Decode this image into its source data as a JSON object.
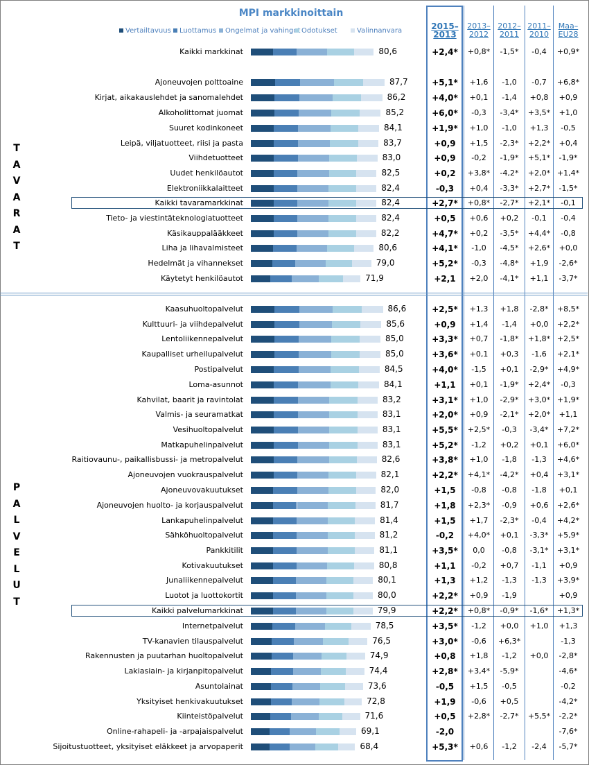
{
  "chart_data": {
    "type": "table",
    "title": "MPI markkinoittain",
    "legend": [
      "Vertailtavuus",
      "Luottamus",
      "Ongelmat ja vahingot",
      "Odotukset",
      "Valinnanvara"
    ],
    "legend_colors": [
      "#1f4e79",
      "#4a7fb5",
      "#8ab1d6",
      "#a9d1e3",
      "#d6e3f0"
    ],
    "columns": [
      "2015–2013",
      "2013–2012",
      "2012–2011",
      "2011–2010",
      "Maa–EU28"
    ],
    "sections": [
      "T A V A R A T",
      "P A L V E L U T"
    ],
    "rows": [
      {
        "label": "Kaikki markkinat",
        "value": "80,6",
        "d": [
          "+2,4*",
          "+0,8*",
          "-1,5*",
          "-0,4",
          "+0,9*"
        ]
      },
      {
        "label": "Ajoneuvojen polttoaine",
        "value": "87,7",
        "d": [
          "+5,1*",
          "+1,6",
          "-1,0",
          "-0,7",
          "+6,8*"
        ]
      },
      {
        "label": "Kirjat, aikakauslehdet ja sanomalehdet",
        "value": "86,2",
        "d": [
          "+4,0*",
          "+0,1",
          "-1,4",
          "+0,8",
          "+0,9"
        ]
      },
      {
        "label": "Alkoholittomat juomat",
        "value": "85,2",
        "d": [
          "+6,0*",
          "-0,3",
          "-3,4*",
          "+3,5*",
          "+1,0"
        ]
      },
      {
        "label": "Suuret kodinkoneet",
        "value": "84,1",
        "d": [
          "+1,9*",
          "+1,0",
          "-1,0",
          "+1,3",
          "-0,5"
        ]
      },
      {
        "label": "Leipä, viljatuotteet, riisi ja pasta",
        "value": "83,7",
        "d": [
          "+0,9",
          "+1,5",
          "-2,3*",
          "+2,2*",
          "+0,4"
        ]
      },
      {
        "label": "Viihdetuotteet",
        "value": "83,0",
        "d": [
          "+0,9",
          "-0,2",
          "-1,9*",
          "+5,1*",
          "-1,9*"
        ]
      },
      {
        "label": "Uudet henkilöautot",
        "value": "82,5",
        "d": [
          "+0,2",
          "+3,8*",
          "-4,2*",
          "+2,0*",
          "+1,4*"
        ]
      },
      {
        "label": "Elektroniikkalaitteet",
        "value": "82,4",
        "d": [
          "-0,3",
          "+0,4",
          "-3,3*",
          "+2,7*",
          "-1,5*"
        ]
      },
      {
        "label": "Kaikki tavaramarkkinat",
        "value": "82,4",
        "d": [
          "+2,7*",
          "+0,8*",
          "-2,7*",
          "+2,1*",
          "-0,1"
        ]
      },
      {
        "label": "Tieto- ja viestintäteknologiatuotteet",
        "value": "82,4",
        "d": [
          "+0,5",
          "+0,6",
          "+0,2",
          "-0,1",
          "-0,4"
        ]
      },
      {
        "label": "Käsikauppalääkkeet",
        "value": "82,2",
        "d": [
          "+4,7*",
          "+0,2",
          "-3,5*",
          "+4,4*",
          "-0,8"
        ]
      },
      {
        "label": "Liha ja lihavalmisteet",
        "value": "80,6",
        "d": [
          "+4,1*",
          "-1,0",
          "-4,5*",
          "+2,6*",
          "+0,0"
        ]
      },
      {
        "label": "Hedelmät ja vihannekset",
        "value": "79,0",
        "d": [
          "+5,2*",
          "-0,3",
          "-4,8*",
          "+1,9",
          "-2,6*"
        ]
      },
      {
        "label": "Käytetyt henkilöautot",
        "value": "71,9",
        "d": [
          "+2,1",
          "+2,0",
          "-4,1*",
          "+1,1",
          "-3,7*"
        ]
      },
      {
        "label": "Kaasuhuoltopalvelut",
        "value": "86,6",
        "d": [
          "+2,5*",
          "+1,3",
          "+1,8",
          "-2,8*",
          "+8,5*"
        ]
      },
      {
        "label": "Kulttuuri- ja viihdepalvelut",
        "value": "85,6",
        "d": [
          "+0,9",
          "+1,4",
          "-1,4",
          "+0,0",
          "+2,2*"
        ]
      },
      {
        "label": "Lentoliikennepalvelut",
        "value": "85,0",
        "d": [
          "+3,3*",
          "+0,7",
          "-1,8*",
          "+1,8*",
          "+2,5*"
        ]
      },
      {
        "label": "Kaupalliset urheilupalvelut",
        "value": "85,0",
        "d": [
          "+3,6*",
          "+0,1",
          "+0,3",
          "-1,6",
          "+2,1*"
        ]
      },
      {
        "label": "Postipalvelut",
        "value": "84,5",
        "d": [
          "+4,0*",
          "-1,5",
          "+0,1",
          "-2,9*",
          "+4,9*"
        ]
      },
      {
        "label": "Loma-asunnot",
        "value": "84,1",
        "d": [
          "+1,1",
          "+0,1",
          "-1,9*",
          "+2,4*",
          "-0,3"
        ]
      },
      {
        "label": "Kahvilat, baarit ja ravintolat",
        "value": "83,2",
        "d": [
          "+3,1*",
          "+1,0",
          "-2,9*",
          "+3,0*",
          "+1,9*"
        ]
      },
      {
        "label": "Valmis- ja seuramatkat",
        "value": "83,1",
        "d": [
          "+2,0*",
          "+0,9",
          "-2,1*",
          "+2,0*",
          "+1,1"
        ]
      },
      {
        "label": "Vesihuoltopalvelut",
        "value": "83,1",
        "d": [
          "+5,5*",
          "+2,5*",
          "-0,3",
          "-3,4*",
          "+7,2*"
        ]
      },
      {
        "label": "Matkapuhelinpalvelut",
        "value": "83,1",
        "d": [
          "+5,2*",
          "-1,2",
          "+0,2",
          "+0,1",
          "+6,0*"
        ]
      },
      {
        "label": "Raitiovaunu-, paikallisbussi- ja metropalvelut",
        "value": "82,6",
        "d": [
          "+3,8*",
          "+1,0",
          "-1,8",
          "-1,3",
          "+4,6*"
        ]
      },
      {
        "label": "Ajoneuvojen vuokrauspalvelut",
        "value": "82,1",
        "d": [
          "+2,2*",
          "+4,1*",
          "-4,2*",
          "+0,4",
          "+3,1*"
        ]
      },
      {
        "label": "Ajoneuvovakuutukset",
        "value": "82,0",
        "d": [
          "+1,5",
          "-0,8",
          "-0,8",
          "-1,8",
          "+0,1"
        ]
      },
      {
        "label": "Ajoneuvojen huolto- ja korjauspalvelut",
        "value": "81,7",
        "d": [
          "+1,8",
          "+2,3*",
          "-0,9",
          "+0,6",
          "+2,6*"
        ]
      },
      {
        "label": "Lankapuhelinpalvelut",
        "value": "81,4",
        "d": [
          "+1,5",
          "+1,7",
          "-2,3*",
          "-0,4",
          "+4,2*"
        ]
      },
      {
        "label": "Sähköhuoltopalvelut",
        "value": "81,2",
        "d": [
          "-0,2",
          "+4,0*",
          "+0,1",
          "-3,3*",
          "+5,9*"
        ]
      },
      {
        "label": "Pankkitilit",
        "value": "81,1",
        "d": [
          "+3,5*",
          "0,0",
          "-0,8",
          "-3,1*",
          "+3,1*"
        ]
      },
      {
        "label": "Kotivakuutukset",
        "value": "80,8",
        "d": [
          "+1,1",
          "-0,2",
          "+0,7",
          "-1,1",
          "+0,9"
        ]
      },
      {
        "label": "Junaliikennepalvelut",
        "value": "80,1",
        "d": [
          "+1,3",
          "+1,2",
          "-1,3",
          "-1,3",
          "+3,9*"
        ]
      },
      {
        "label": "Luotot ja luottokortit",
        "value": "80,0",
        "d": [
          "+2,2*",
          "+0,9",
          "-1,9",
          "",
          "+0,9"
        ]
      },
      {
        "label": "Kaikki palvelumarkkinat",
        "value": "79,9",
        "d": [
          "+2,2*",
          "+0,8*",
          "-0,9*",
          "-1,6*",
          "+1,3*"
        ]
      },
      {
        "label": "Internetpalvelut",
        "value": "78,5",
        "d": [
          "+3,5*",
          "-1,2",
          "+0,0",
          "+1,0",
          "+1,3"
        ]
      },
      {
        "label": "TV-kanavien tilauspalvelut",
        "value": "76,5",
        "d": [
          "+3,0*",
          "-0,6",
          "+6,3*",
          "",
          "-1,3"
        ]
      },
      {
        "label": "Rakennusten ja puutarhan huoltopalvelut",
        "value": "74,9",
        "d": [
          "+0,8",
          "+1,8",
          "-1,2",
          "+0,0",
          "-2,8*"
        ]
      },
      {
        "label": "Lakiasiain- ja kirjanpitopalvelut",
        "value": "74,4",
        "d": [
          "+2,8*",
          "+3,4*",
          "-5,9*",
          "",
          "-4,6*"
        ]
      },
      {
        "label": "Asuntolainat",
        "value": "73,6",
        "d": [
          "-0,5",
          "+1,5",
          "-0,5",
          "",
          "-0,2"
        ]
      },
      {
        "label": "Yksityiset henkivakuutukset",
        "value": "72,8",
        "d": [
          "+1,9",
          "-0,6",
          "+0,5",
          "",
          "-4,2*"
        ]
      },
      {
        "label": "Kiinteistöpalvelut",
        "value": "71,6",
        "d": [
          "+0,5",
          "+2,8*",
          "-2,7*",
          "+5,5*",
          "-2,2*"
        ]
      },
      {
        "label": "Online-rahapeli- ja -arpajaispalvelut",
        "value": "69,1",
        "d": [
          "-2,0",
          "",
          "",
          "",
          "-7,6*"
        ]
      },
      {
        "label": "Sijoitustuotteet, yksityiset eläkkeet ja arvopaperit",
        "value": "68,4",
        "d": [
          "+5,3*",
          "+0,6",
          "-1,2",
          "-2,4",
          "-5,7*"
        ]
      }
    ]
  }
}
